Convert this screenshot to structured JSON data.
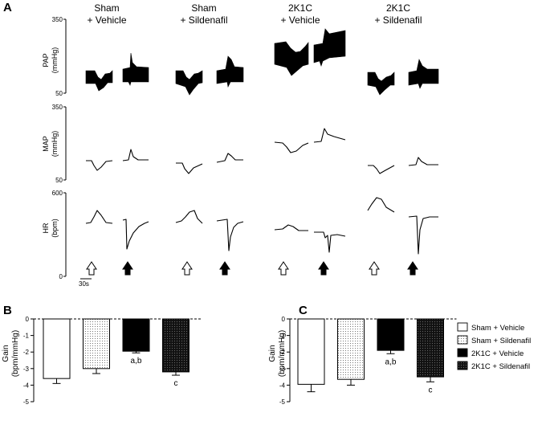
{
  "panel_labels": [
    "A",
    "B",
    "C"
  ],
  "groups": [
    {
      "line1": "Sham",
      "line2": "+ Vehicle"
    },
    {
      "line1": "Sham",
      "line2": "+ Sildenafil"
    },
    {
      "line1": "2K1C",
      "line2": "+ Vehicle"
    },
    {
      "line1": "2K1C",
      "line2": "+ Sildenafil"
    }
  ],
  "traces": {
    "rows": [
      {
        "name": "PAP",
        "ylabel_line1": "PAP",
        "ylabel_line2": "(mmHg)",
        "top_tick": "350",
        "bottom_tick": "50"
      },
      {
        "name": "MAP",
        "ylabel_line1": "MAP",
        "ylabel_line2": "(mmHg)",
        "top_tick": "350",
        "bottom_tick": "50"
      },
      {
        "name": "HR",
        "ylabel_line1": "HR",
        "ylabel_line2": "(bpm)",
        "top_tick": "600",
        "bottom_tick": "0"
      }
    ],
    "scale_bar_label": "30s",
    "arrows": [
      "open",
      "filled"
    ]
  },
  "chart_data": [
    {
      "panel": "B",
      "type": "bar",
      "categories": [
        "Sham + Vehicle",
        "Sham + Sildenafil",
        "2K1C + Vehicle",
        "2K1C + Sildenafil"
      ],
      "values": [
        -3.6,
        -3.0,
        -1.95,
        -3.2
      ],
      "errors": [
        0.3,
        0.3,
        0.1,
        0.2
      ],
      "annotations": [
        "",
        "",
        "a,b",
        "c"
      ],
      "ylabel_line1": "Gain",
      "ylabel_line2": "(bpm/mmHg)",
      "ylim": [
        -5,
        0
      ],
      "yticks": [
        "0",
        "-1",
        "-2",
        "-3",
        "-4",
        "-5"
      ]
    },
    {
      "panel": "C",
      "type": "bar",
      "categories": [
        "Sham + Vehicle",
        "Sham + Sildenafil",
        "2K1C + Vehicle",
        "2K1C + Sildenafil"
      ],
      "values": [
        -3.95,
        -3.65,
        -1.9,
        -3.5
      ],
      "errors": [
        0.45,
        0.35,
        0.2,
        0.3
      ],
      "annotations": [
        "",
        "",
        "a,b",
        "c"
      ],
      "ylabel_line1": "Gain",
      "ylabel_line2": "(bpm/mmHg)",
      "ylim": [
        -5,
        0
      ],
      "yticks": [
        "0",
        "-1",
        "-2",
        "-3",
        "-4",
        "-5"
      ]
    }
  ],
  "legend": [
    {
      "label": "Sham + Vehicle",
      "fill": "white"
    },
    {
      "label": "Sham + Sildenafil",
      "fill": "dots"
    },
    {
      "label": "2K1C + Vehicle",
      "fill": "black"
    },
    {
      "label": "2K1C + Sildenafil",
      "fill": "dark-dots"
    }
  ]
}
